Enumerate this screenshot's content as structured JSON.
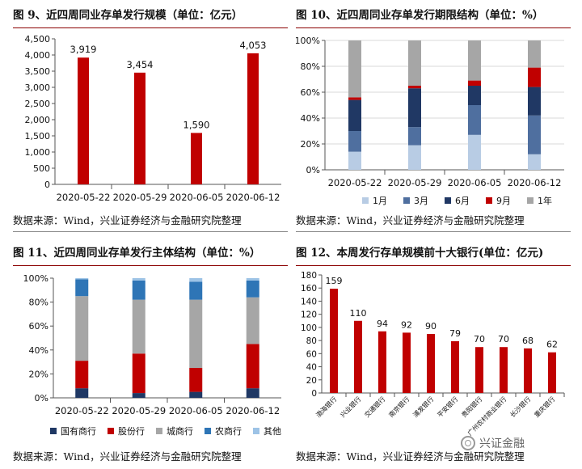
{
  "panels": [
    {
      "title": "图 9、近四周同业存单发行规模（单位：亿元）",
      "source": "数据来源：Wind，兴业证券经济与金融研究院整理"
    },
    {
      "title": "图 10、近四周同业存单发行期限结构（单位：%）",
      "source": "数据来源：Wind，兴业证券经济与金融研究院整理"
    },
    {
      "title": "图 11、近四周同业存单发行主体结构（单位：%）",
      "source": "数据来源：Wind，兴业证券经济与金融研究院整理"
    },
    {
      "title": "图 12、本周发行存单规模前十大银行(单位：亿元)",
      "source": "数据来源：Wind，兴业证券经济与金融研究院整理"
    }
  ],
  "colors": {
    "red": "#c00000",
    "light_blue": "#b8cce4",
    "mid_blue": "#4f6f9f",
    "dark_blue": "#203864",
    "gray": "#a6a6a6",
    "steel_blue": "#2e75b6",
    "pale_blue": "#9dc3e6",
    "navy": "#1f3864"
  },
  "chart_data": [
    {
      "type": "bar",
      "title": "图 9、近四周同业存单发行规模（单位：亿元）",
      "categories": [
        "2020-05-22",
        "2020-05-29",
        "2020-06-05",
        "2020-06-12"
      ],
      "values": [
        3919,
        3454,
        1590,
        4053
      ],
      "data_labels": [
        "3,919",
        "3,454",
        "1,590",
        "4,053"
      ],
      "ylim": [
        0,
        4500
      ],
      "yticks": [
        "0",
        "500",
        "1,000",
        "1,500",
        "2,000",
        "2,500",
        "3,000",
        "3,500",
        "4,000",
        "4,500"
      ],
      "grid": false
    },
    {
      "type": "bar",
      "stacked": true,
      "title": "图 10、近四周同业存单发行期限结构（单位：%）",
      "categories": [
        "2020-05-22",
        "2020-05-29",
        "2020-06-05",
        "2020-06-12"
      ],
      "series": [
        {
          "name": "1月",
          "values": [
            14,
            19,
            27,
            12
          ]
        },
        {
          "name": "3月",
          "values": [
            16,
            14,
            23,
            30
          ]
        },
        {
          "name": "6月",
          "values": [
            24,
            30,
            15,
            22
          ]
        },
        {
          "name": "9月",
          "values": [
            2,
            2,
            4,
            15
          ]
        },
        {
          "name": "1年",
          "values": [
            44,
            35,
            31,
            21
          ]
        }
      ],
      "ylim": [
        0,
        100
      ],
      "yticks": [
        "0%",
        "20%",
        "40%",
        "60%",
        "80%",
        "100%"
      ],
      "grid": true,
      "legend": "bottom"
    },
    {
      "type": "bar",
      "stacked": true,
      "title": "图 11、近四周同业存单发行主体结构（单位：%）",
      "categories": [
        "2020-05-22",
        "2020-05-29",
        "2020-06-05",
        "2020-06-12"
      ],
      "series": [
        {
          "name": "国有商行",
          "values": [
            8,
            4,
            5,
            8
          ]
        },
        {
          "name": "股份行",
          "values": [
            23,
            33,
            20,
            37
          ]
        },
        {
          "name": "城商行",
          "values": [
            54,
            45,
            57,
            39
          ]
        },
        {
          "name": "农商行",
          "values": [
            14,
            16,
            15,
            14
          ]
        },
        {
          "name": "其他",
          "values": [
            1,
            2,
            3,
            2
          ]
        }
      ],
      "ylim": [
        0,
        100
      ],
      "yticks": [
        "0%",
        "20%",
        "40%",
        "60%",
        "80%",
        "100%"
      ],
      "grid": false,
      "legend": "bottom"
    },
    {
      "type": "bar",
      "title": "图 12、本周发行存单规模前十大银行(单位：亿元)",
      "categories": [
        "渤海银行",
        "兴业银行",
        "交通银行",
        "南京银行",
        "浦发银行",
        "平安银行",
        "贵阳银行",
        "广州农村商业银行",
        "长沙银行",
        "重庆银行"
      ],
      "values": [
        159,
        110,
        94,
        92,
        90,
        79,
        70,
        70,
        68,
        62
      ],
      "data_labels": [
        "159",
        "110",
        "94",
        "92",
        "90",
        "79",
        "70",
        "70",
        "68",
        "62"
      ],
      "ylim": [
        0,
        180
      ],
      "yticks": [
        "0",
        "20",
        "40",
        "60",
        "80",
        "100",
        "120",
        "140",
        "160",
        "180"
      ],
      "grid": false
    }
  ],
  "watermark": {
    "text": "兴证金融",
    "icon": "wechat-icon"
  }
}
